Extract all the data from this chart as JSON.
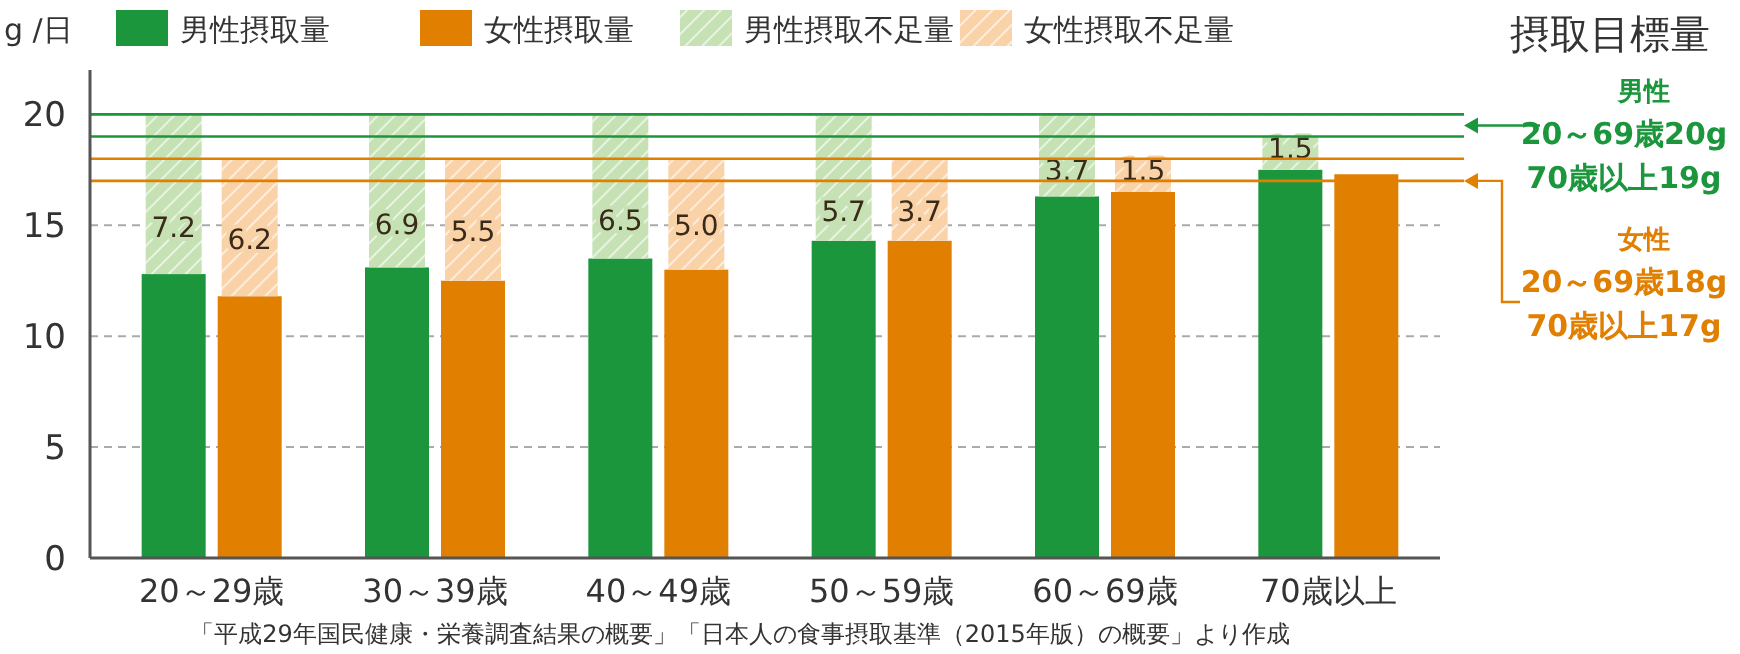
{
  "chart_data": {
    "type": "bar",
    "ylabel": "g /日",
    "categories": [
      "20～29歳",
      "30～39歳",
      "40～49歳",
      "50～59歳",
      "60～69歳",
      "70歳以上"
    ],
    "series": [
      {
        "name": "男性摂取量",
        "color": "#1b963c",
        "values": [
          12.8,
          13.1,
          13.5,
          14.3,
          16.3,
          17.5
        ]
      },
      {
        "name": "女性摂取量",
        "color": "#e07f00",
        "values": [
          11.8,
          12.5,
          13.0,
          14.3,
          16.5,
          17.3
        ]
      },
      {
        "name": "男性摂取不足量",
        "color": "#c6e2b5",
        "base": [
          12.8,
          13.1,
          13.5,
          14.3,
          16.3,
          17.5
        ],
        "values": [
          7.2,
          6.9,
          6.5,
          5.7,
          3.7,
          1.5
        ],
        "value_labels": [
          "7.2",
          "6.9",
          "6.5",
          "5.7",
          "3.7",
          "1.5"
        ]
      },
      {
        "name": "女性摂取不足量",
        "color": "#f9d2a8",
        "base": [
          11.8,
          12.5,
          13.0,
          14.3,
          16.5,
          null
        ],
        "values": [
          6.2,
          5.5,
          5.0,
          3.7,
          1.5,
          null
        ],
        "value_labels": [
          "6.2",
          "5.5",
          "5.0",
          "3.7",
          "1.5",
          null
        ]
      }
    ],
    "ylim": [
      0,
      22
    ],
    "yticks": [
      0,
      5,
      10,
      15,
      20
    ],
    "grid": "y",
    "legend": "top",
    "ref_lines": [
      {
        "axis": "y",
        "value": 20,
        "color": "#1b963c"
      },
      {
        "axis": "y",
        "value": 19,
        "color": "#1b963c"
      },
      {
        "axis": "y",
        "value": 18,
        "color": "#e07f00"
      },
      {
        "axis": "y",
        "value": 17,
        "color": "#e07f00"
      }
    ],
    "annotations": [
      "摂取目標量",
      "男性",
      "20～69歳20g",
      "70歳以上19g",
      "女性",
      "20～69歳18g",
      "70歳以上17g",
      "「平成29年国民健康・栄養調査結果の概要」「日本人の食事摂取基準（2015年版）の概要」より作成"
    ]
  }
}
